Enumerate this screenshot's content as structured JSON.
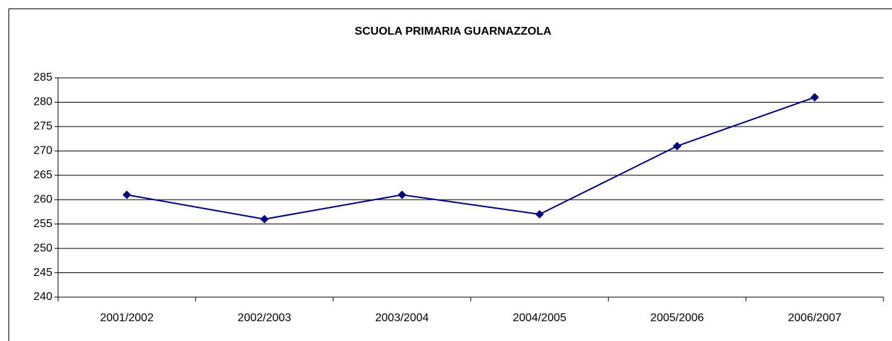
{
  "chart_data": {
    "type": "line",
    "title": "SCUOLA PRIMARIA GUARNAZZOLA",
    "categories": [
      "2001/2002",
      "2002/2003",
      "2003/2004",
      "2004/2005",
      "2005/2006",
      "2006/2007"
    ],
    "series": [
      {
        "color": "#000080",
        "values": [
          261,
          256,
          261,
          257,
          271,
          281
        ]
      }
    ],
    "ylim": [
      240,
      285
    ],
    "yticks": [
      240,
      245,
      250,
      255,
      260,
      265,
      270,
      275,
      280,
      285
    ],
    "grid": true
  }
}
